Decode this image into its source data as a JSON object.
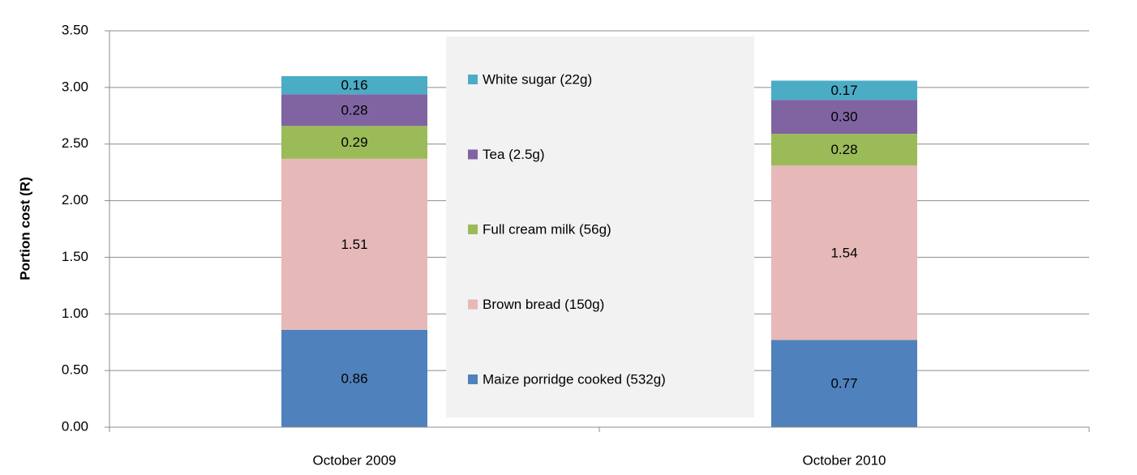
{
  "chart_data": {
    "type": "stacked-bar",
    "y_label": "Portion cost (R)",
    "categories": [
      "October 2009",
      "October 2010"
    ],
    "series": [
      {
        "name": "Maize porridge cooked (532g)",
        "color": "#4f81bd",
        "values": [
          0.86,
          0.77
        ]
      },
      {
        "name": "Brown bread (150g)",
        "color": "#e6b9b8",
        "values": [
          1.51,
          1.54
        ]
      },
      {
        "name": "Full cream milk (56g)",
        "color": "#9bbb59",
        "values": [
          0.29,
          0.28
        ]
      },
      {
        "name": "Tea (2.5g)",
        "color": "#8064a2",
        "values": [
          0.28,
          0.3
        ],
        "value_labels": [
          "0.28",
          "0.30"
        ]
      },
      {
        "name": "White sugar (22g)",
        "color": "#4bacc6",
        "values": [
          0.16,
          0.17
        ]
      }
    ],
    "ylim": [
      0,
      3.5
    ],
    "yticks": [
      {
        "value": 0,
        "label": "0.00"
      },
      {
        "value": 0.5,
        "label": "0.50"
      },
      {
        "value": 1,
        "label": "1.00"
      },
      {
        "value": 1.5,
        "label": "1.50"
      },
      {
        "value": 2,
        "label": "2.00"
      },
      {
        "value": 2.5,
        "label": "2.50"
      },
      {
        "value": 3,
        "label": "3.00"
      },
      {
        "value": 3.5,
        "label": "3.50"
      }
    ],
    "grid": true,
    "legend": "center"
  }
}
